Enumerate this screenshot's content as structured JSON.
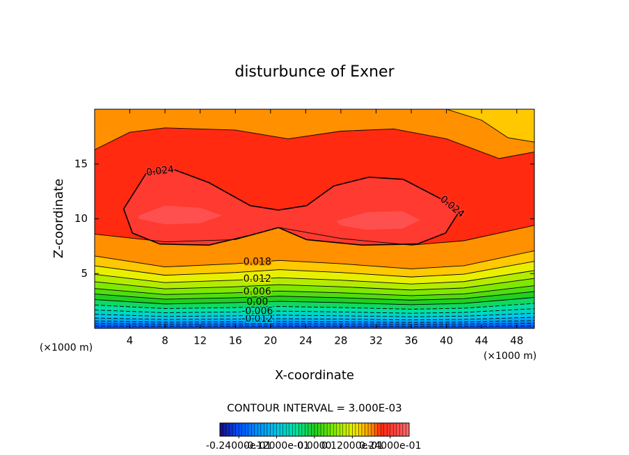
{
  "chart_data": {
    "type": "contour",
    "title": "disturbunce of Exner",
    "x_label": "X-coordinate",
    "y_label": "Z-coordinate",
    "x_unit_label": "(×1000 m)",
    "y_unit_label": "(×1000 m)",
    "contour_interval": {
      "value": 0.003,
      "label": "CONTOUR INTERVAL = 3.000E-03"
    },
    "xlim": [
      0,
      50
    ],
    "ylim": [
      0,
      20
    ],
    "xticks": [
      4,
      8,
      12,
      16,
      20,
      24,
      28,
      32,
      36,
      40,
      44,
      48
    ],
    "yticks": [
      5,
      10,
      15
    ],
    "clim": [
      -0.03,
      0.03
    ],
    "cticks": [
      {
        "value": -0.024,
        "label": "-0.24000e-01"
      },
      {
        "value": -0.012,
        "label": "-0.12000e-01"
      },
      {
        "value": 0,
        "label": "0.0000"
      },
      {
        "value": 0.012,
        "label": "0.12000e-01"
      },
      {
        "value": 0.024,
        "label": "0.24000e-01"
      }
    ],
    "colormap": [
      {
        "value": -0.03,
        "color": "#1a0a80"
      },
      {
        "value": -0.024,
        "color": "#0050ff"
      },
      {
        "value": -0.018,
        "color": "#0090ff"
      },
      {
        "value": -0.012,
        "color": "#00c8e8"
      },
      {
        "value": -0.006,
        "color": "#00e0a0"
      },
      {
        "value": 0,
        "color": "#20d020"
      },
      {
        "value": 0.006,
        "color": "#80e800"
      },
      {
        "value": 0.012,
        "color": "#e8f000"
      },
      {
        "value": 0.015,
        "color": "#ffc800"
      },
      {
        "value": 0.018,
        "color": "#ff9000"
      },
      {
        "value": 0.021,
        "color": "#ff2a10"
      },
      {
        "value": 0.024,
        "color": "#ff3a30"
      },
      {
        "value": 0.027,
        "color": "#ff5050"
      },
      {
        "value": 0.03,
        "color": "#ff7070"
      }
    ],
    "contours": [
      {
        "level": -0.021,
        "side": "above",
        "x": [
          0,
          8,
          16,
          21,
          28,
          36,
          42,
          50
        ],
        "y": [
          0.22,
          0.19,
          0.2,
          0.21,
          0.2,
          0.18,
          0.19,
          0.24
        ]
      },
      {
        "level": -0.018,
        "side": "above",
        "x": [
          0,
          8,
          16,
          21,
          28,
          36,
          42,
          50
        ],
        "y": [
          0.45,
          0.38,
          0.4,
          0.42,
          0.4,
          0.37,
          0.39,
          0.48
        ]
      },
      {
        "level": -0.015,
        "side": "above",
        "x": [
          0,
          8,
          16,
          21,
          28,
          36,
          42,
          50
        ],
        "y": [
          0.67,
          0.57,
          0.6,
          0.63,
          0.6,
          0.55,
          0.58,
          0.72
        ]
      },
      {
        "level": -0.012,
        "side": "above",
        "x": [
          0,
          8,
          16,
          21,
          28,
          36,
          42,
          50
        ],
        "y": [
          0.95,
          0.81,
          0.85,
          0.89,
          0.85,
          0.78,
          0.82,
          1.02
        ]
      },
      {
        "level": -0.009,
        "side": "above",
        "x": [
          0,
          8,
          16,
          21,
          28,
          36,
          42,
          50
        ],
        "y": [
          1.29,
          1.09,
          1.15,
          1.21,
          1.15,
          1.06,
          1.12,
          1.38
        ]
      },
      {
        "level": -0.006,
        "side": "above",
        "x": [
          0,
          8,
          16,
          21,
          28,
          36,
          42,
          50
        ],
        "y": [
          1.68,
          1.43,
          1.5,
          1.58,
          1.5,
          1.38,
          1.46,
          1.8
        ]
      },
      {
        "level": -0.003,
        "side": "above",
        "x": [
          0,
          8,
          16,
          21,
          28,
          36,
          42,
          50
        ],
        "y": [
          2.13,
          1.81,
          1.9,
          2.0,
          1.9,
          1.75,
          1.84,
          2.28
        ]
      },
      {
        "level": 0,
        "value_label": "0.00",
        "side": "above",
        "x": [
          0,
          8,
          16,
          21,
          28,
          36,
          42,
          50
        ],
        "y": [
          2.63,
          2.23,
          2.35,
          2.47,
          2.35,
          2.16,
          2.28,
          2.82
        ]
      },
      {
        "level": 0.003,
        "side": "above",
        "x": [
          0,
          8,
          16,
          21,
          28,
          36,
          42,
          50
        ],
        "y": [
          3.14,
          2.66,
          2.8,
          2.94,
          2.8,
          2.58,
          2.72,
          3.36
        ]
      },
      {
        "level": 0.006,
        "side": "above",
        "x": [
          0,
          8,
          16,
          21,
          28,
          36,
          42,
          50
        ],
        "y": [
          3.64,
          3.09,
          3.25,
          3.41,
          3.25,
          2.99,
          3.15,
          3.9
        ]
      },
      {
        "level": 0.009,
        "side": "above",
        "x": [
          0,
          8,
          16,
          21,
          28,
          36,
          42,
          50
        ],
        "y": [
          4.26,
          3.61,
          3.8,
          3.99,
          3.8,
          3.5,
          3.69,
          4.56
        ]
      },
      {
        "level": 0.012,
        "side": "above",
        "x": [
          0,
          8,
          16,
          21,
          28,
          36,
          42,
          50
        ],
        "y": [
          4.93,
          4.18,
          4.4,
          4.62,
          4.4,
          4.05,
          4.27,
          5.28
        ]
      },
      {
        "level": 0.015,
        "side": "above",
        "x": [
          0,
          8,
          16,
          21,
          28,
          36,
          42,
          50
        ],
        "y": [
          5.71,
          4.85,
          5.1,
          5.36,
          5.1,
          4.69,
          4.95,
          6.12
        ]
      },
      {
        "level": 0.018,
        "side": "above",
        "x": [
          0,
          8,
          16,
          21,
          28,
          36,
          42,
          50
        ],
        "y": [
          6.61,
          5.61,
          5.9,
          6.2,
          5.9,
          5.43,
          5.72,
          7.08
        ]
      },
      {
        "level": 0.021,
        "side": "above",
        "x": [
          0,
          8,
          16,
          21,
          28,
          36,
          42,
          50
        ],
        "y": [
          8.6,
          7.9,
          8.1,
          9.2,
          8.2,
          7.6,
          8.0,
          9.4
        ]
      },
      {
        "level": 0.021,
        "side": "below",
        "x": [
          0,
          4,
          8,
          16,
          22,
          28,
          34,
          40,
          46,
          50
        ],
        "y": [
          16.3,
          17.9,
          18.3,
          18.1,
          17.3,
          18.0,
          18.2,
          17.3,
          15.5,
          16.1
        ]
      },
      {
        "level": 0.018,
        "side": "below",
        "x": [
          40,
          44,
          47,
          50
        ],
        "y": [
          20,
          19.0,
          17.4,
          17.0
        ]
      },
      {
        "level": 0.024,
        "side": "inside",
        "x": [
          3.3,
          5.9,
          9.0,
          13.0,
          17.7,
          20.9,
          24.1,
          27.2,
          31.2,
          35.1,
          39.9,
          41.4,
          39.9,
          36.7,
          30.4,
          24.1,
          20.9,
          17.7,
          13.0,
          7.4,
          4.3
        ],
        "y": [
          10.9,
          14.2,
          14.5,
          13.3,
          11.2,
          10.8,
          11.2,
          13.0,
          13.8,
          13.6,
          11.6,
          10.6,
          8.7,
          7.7,
          7.6,
          8.1,
          9.2,
          8.5,
          7.6,
          7.7,
          8.7
        ]
      },
      {
        "level": 0.027,
        "side": "inside",
        "line": false,
        "x": [
          5,
          8,
          12,
          14.5,
          12,
          8,
          5
        ],
        "y": [
          10.3,
          11.2,
          11.0,
          10.3,
          9.6,
          9.5,
          10.0
        ]
      },
      {
        "level": 0.027,
        "side": "inside",
        "line": false,
        "x": [
          27.5,
          31,
          35,
          37,
          35,
          31,
          28
        ],
        "y": [
          9.8,
          10.6,
          10.7,
          9.9,
          9.1,
          9.0,
          9.4
        ]
      }
    ]
  }
}
